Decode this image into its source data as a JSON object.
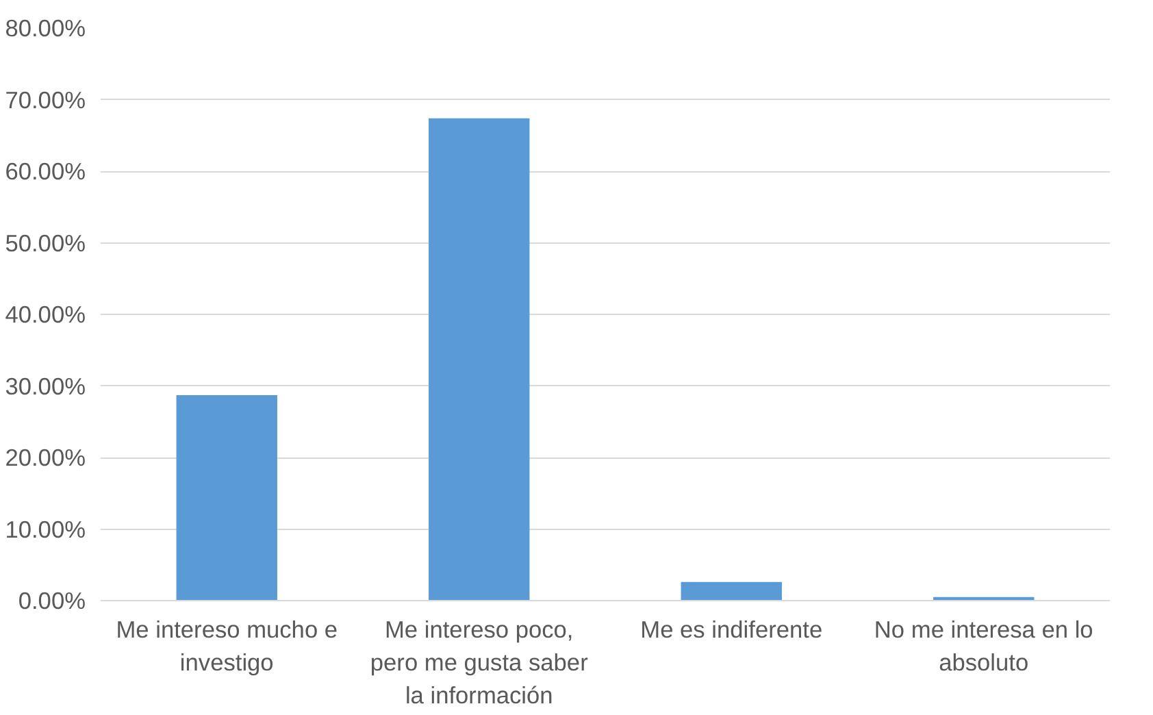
{
  "chart_data": {
    "type": "bar",
    "categories": [
      "Me intereso mucho e investigo",
      "Me intereso poco, pero me gusta saber la información",
      "Me es indiferente",
      "No me interesa en lo absoluto"
    ],
    "values": [
      28.7,
      67.4,
      2.6,
      0.5
    ],
    "color": "#5b9bd5",
    "ylim": [
      0,
      80
    ],
    "yticks": [
      {
        "value": 0,
        "label": "0.00%"
      },
      {
        "value": 10,
        "label": "10.00%"
      },
      {
        "value": 20,
        "label": "20.00%"
      },
      {
        "value": 30,
        "label": "30.00%"
      },
      {
        "value": 40,
        "label": "40.00%"
      },
      {
        "value": 50,
        "label": "50.00%"
      },
      {
        "value": 60,
        "label": "60.00%"
      },
      {
        "value": 70,
        "label": "70.00%"
      },
      {
        "value": 80,
        "label": "80.00%"
      }
    ],
    "grid": "y"
  }
}
